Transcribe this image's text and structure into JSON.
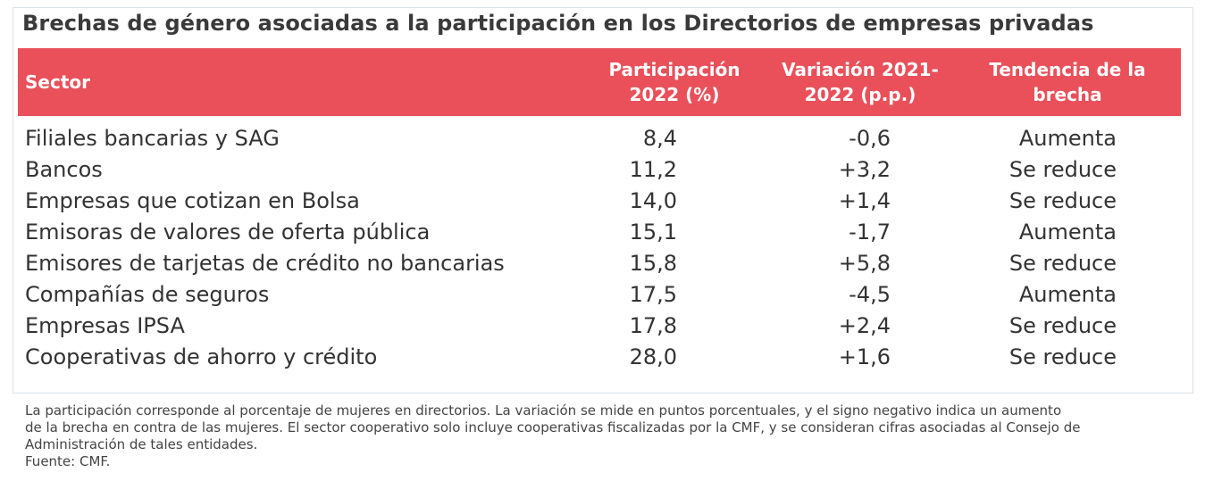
{
  "chart_data": {
    "type": "table",
    "title": "Brechas de género asociadas a la participación en los Directorios de empresas privadas",
    "columns": [
      {
        "line1": "Sector",
        "line2": ""
      },
      {
        "line1": "Participación",
        "line2": "2022 (%)"
      },
      {
        "line1": "Variación 2021-",
        "line2": "2022 (p.p.)"
      },
      {
        "line1": "Tendencia de la",
        "line2": "brecha"
      }
    ],
    "rows": [
      {
        "sector": "Filiales bancarias y SAG",
        "participacion": "8,4",
        "variacion": "-0,6",
        "tendencia": "Aumenta"
      },
      {
        "sector": "Bancos",
        "participacion": "11,2",
        "variacion": "+3,2",
        "tendencia": "Se reduce"
      },
      {
        "sector": "Empresas que cotizan en Bolsa",
        "participacion": "14,0",
        "variacion": "+1,4",
        "tendencia": "Se reduce"
      },
      {
        "sector": "Emisoras de valores de oferta pública",
        "participacion": "15,1",
        "variacion": "-1,7",
        "tendencia": "Aumenta"
      },
      {
        "sector": "Emisores de tarjetas de crédito no bancarias",
        "participacion": "15,8",
        "variacion": "+5,8",
        "tendencia": "Se reduce"
      },
      {
        "sector": "Compañías de seguros",
        "participacion": "17,5",
        "variacion": "-4,5",
        "tendencia": "Aumenta"
      },
      {
        "sector": "Empresas IPSA",
        "participacion": "17,8",
        "variacion": "+2,4",
        "tendencia": "Se reduce"
      },
      {
        "sector": "Cooperativas de ahorro y crédito",
        "participacion": "28,0",
        "variacion": "+1,6",
        "tendencia": "Se reduce"
      }
    ],
    "footnote": [
      "La participación corresponde al porcentaje de mujeres en directorios. La variación se mide en puntos porcentuales, y el signo negativo indica un aumento",
      "de la brecha en contra de las mujeres. El sector cooperativo solo incluye cooperativas fiscalizadas por la CMF, y se consideran cifras asociadas al Consejo de",
      "Administración de tales entidades.",
      "Fuente: CMF."
    ],
    "header_color": "#e9505a"
  }
}
